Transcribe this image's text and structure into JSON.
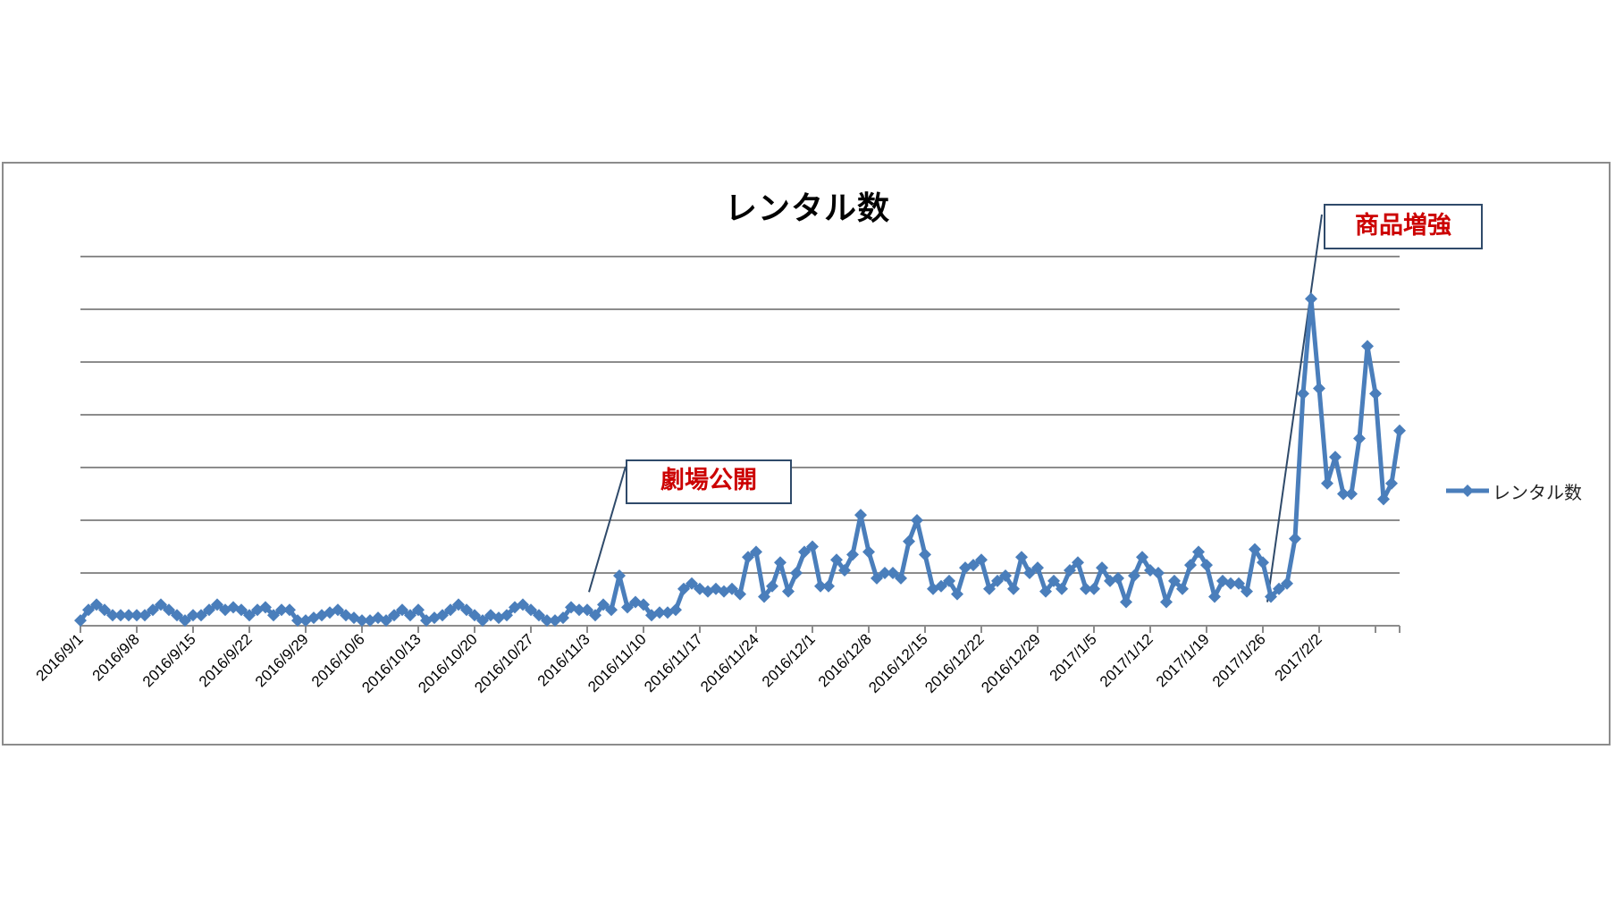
{
  "chart_data": {
    "type": "line",
    "title": "レンタル数",
    "xlabel": "",
    "ylabel": "",
    "y_axis_labels_visible": false,
    "ylim": [
      0,
      7
    ],
    "grid": true,
    "legend_position": "right",
    "x_tick_labels": [
      "2016/9/1",
      "2016/9/8",
      "2016/9/15",
      "2016/9/22",
      "2016/9/29",
      "2016/10/6",
      "2016/10/13",
      "2016/10/20",
      "2016/10/27",
      "2016/11/3",
      "2016/11/10",
      "2016/11/17",
      "2016/11/24",
      "2016/12/1",
      "2016/12/8",
      "2016/12/15",
      "2016/12/22",
      "2016/12/29",
      "2017/1/5",
      "2017/1/12",
      "2017/1/19",
      "2017/1/26",
      "2017/2/2"
    ],
    "x_start": "2016/9/1",
    "x_end": "2017/2/8",
    "series": [
      {
        "name": "レンタル数",
        "color": "#4a7ebb",
        "marker": "diamond",
        "values": [
          0.1,
          0.3,
          0.4,
          0.3,
          0.2,
          0.2,
          0.2,
          0.2,
          0.2,
          0.3,
          0.4,
          0.3,
          0.2,
          0.1,
          0.2,
          0.2,
          0.3,
          0.4,
          0.3,
          0.35,
          0.3,
          0.2,
          0.3,
          0.35,
          0.2,
          0.3,
          0.3,
          0.1,
          0.1,
          0.15,
          0.2,
          0.25,
          0.3,
          0.2,
          0.15,
          0.1,
          0.1,
          0.15,
          0.1,
          0.2,
          0.3,
          0.2,
          0.3,
          0.1,
          0.15,
          0.2,
          0.3,
          0.4,
          0.3,
          0.2,
          0.1,
          0.2,
          0.15,
          0.2,
          0.35,
          0.4,
          0.3,
          0.2,
          0.1,
          0.1,
          0.15,
          0.35,
          0.3,
          0.3,
          0.2,
          0.4,
          0.3,
          0.95,
          0.35,
          0.45,
          0.4,
          0.2,
          0.25,
          0.25,
          0.3,
          0.7,
          0.8,
          0.7,
          0.65,
          0.7,
          0.65,
          0.7,
          0.6,
          1.3,
          1.4,
          0.55,
          0.75,
          1.2,
          0.65,
          1.0,
          1.4,
          1.5,
          0.75,
          0.75,
          1.25,
          1.05,
          1.35,
          2.1,
          1.4,
          0.9,
          1.0,
          1.0,
          0.9,
          1.6,
          2.0,
          1.35,
          0.7,
          0.75,
          0.85,
          0.6,
          1.1,
          1.15,
          1.25,
          0.7,
          0.85,
          0.95,
          0.7,
          1.3,
          1.0,
          1.1,
          0.65,
          0.85,
          0.7,
          1.05,
          1.2,
          0.7,
          0.7,
          1.1,
          0.85,
          0.9,
          0.45,
          0.95,
          1.3,
          1.05,
          1.0,
          0.45,
          0.85,
          0.7,
          1.15,
          1.4,
          1.15,
          0.55,
          0.85,
          0.8,
          0.8,
          0.65,
          1.45,
          1.2,
          0.55,
          0.7,
          0.8,
          1.65,
          4.4,
          6.2,
          4.5,
          2.7,
          3.2,
          2.5,
          2.5,
          3.55,
          5.3,
          4.4,
          2.4,
          2.7,
          3.7
        ]
      }
    ],
    "annotations": [
      {
        "text": "劇場公開",
        "points_to": "2016/11/3",
        "color": "#cc0000"
      },
      {
        "text": "商品増強",
        "points_to": "2017/1/27",
        "color": "#cc0000"
      }
    ]
  },
  "legend": {
    "label": "レンタル数"
  },
  "callouts": {
    "theater_release": "劇場公開",
    "product_boost": "商品増強"
  }
}
